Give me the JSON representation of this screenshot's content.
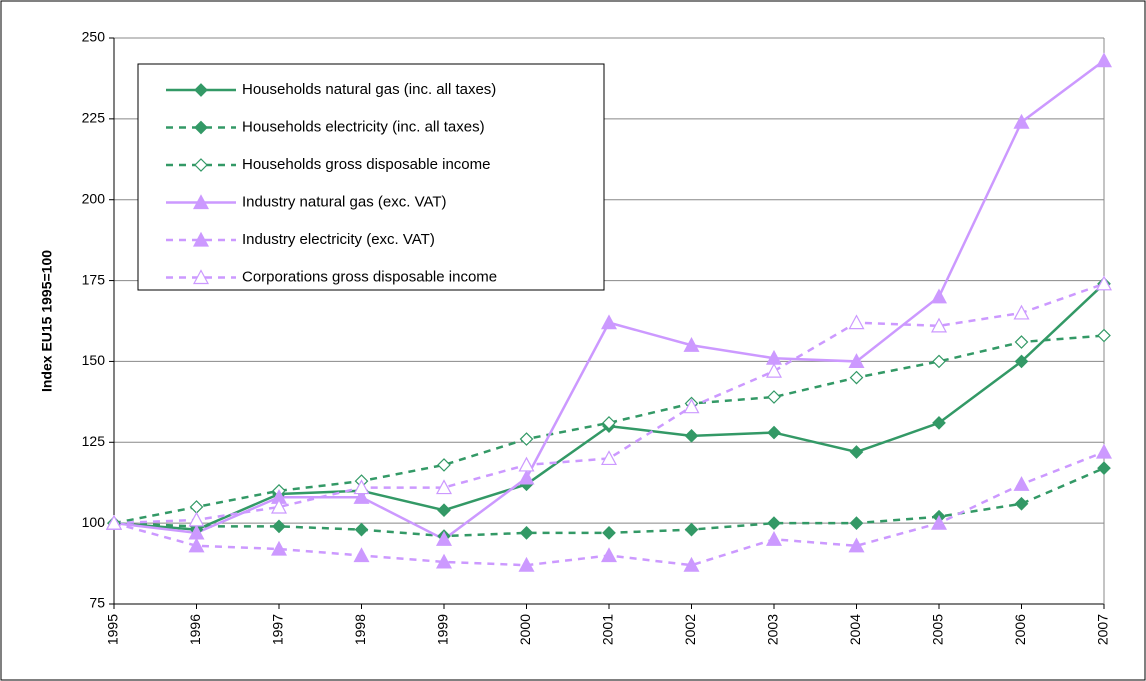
{
  "chart_data": {
    "type": "line",
    "y_label": "Index EU15 1995=100",
    "categories": [
      "1995",
      "1996",
      "1997",
      "1998",
      "1999",
      "2000",
      "2001",
      "2002",
      "2003",
      "2004",
      "2005",
      "2006",
      "2007"
    ],
    "ylim": [
      75,
      250
    ],
    "yticks": [
      75,
      100,
      125,
      150,
      175,
      200,
      225,
      250
    ],
    "grid": true,
    "legend": "top-left",
    "series": [
      {
        "name": "Households natural gas (inc. all taxes)",
        "color": "#339966",
        "dashed": false,
        "marker": "diamond",
        "filled": true,
        "values": [
          100,
          98,
          109,
          110,
          104,
          112,
          130,
          127,
          128,
          122,
          131,
          150,
          174
        ]
      },
      {
        "name": "Households electricity (inc. all taxes)",
        "color": "#339966",
        "dashed": true,
        "marker": "diamond",
        "filled": true,
        "values": [
          100,
          99,
          99,
          98,
          96,
          97,
          97,
          98,
          100,
          100,
          102,
          106,
          117
        ]
      },
      {
        "name": "Households gross disposable income",
        "color": "#339966",
        "dashed": true,
        "marker": "diamond",
        "filled": false,
        "values": [
          100,
          105,
          110,
          113,
          118,
          126,
          131,
          137,
          139,
          145,
          150,
          156,
          158
        ]
      },
      {
        "name": "Industry natural gas (exc. VAT)",
        "color": "#cc99ff",
        "dashed": false,
        "marker": "triangle",
        "filled": true,
        "values": [
          100,
          97,
          108,
          108,
          95,
          114,
          162,
          155,
          151,
          150,
          170,
          224,
          243
        ]
      },
      {
        "name": "Industry electricity (exc. VAT)",
        "color": "#cc99ff",
        "dashed": true,
        "marker": "triangle",
        "filled": true,
        "values": [
          100,
          93,
          92,
          90,
          88,
          87,
          90,
          87,
          95,
          93,
          100,
          112,
          122
        ]
      },
      {
        "name": "Corporations gross disposable income",
        "color": "#cc99ff",
        "dashed": true,
        "marker": "triangle",
        "filled": false,
        "values": [
          100,
          101,
          105,
          111,
          111,
          118,
          120,
          136,
          147,
          162,
          161,
          165,
          174
        ]
      }
    ]
  }
}
